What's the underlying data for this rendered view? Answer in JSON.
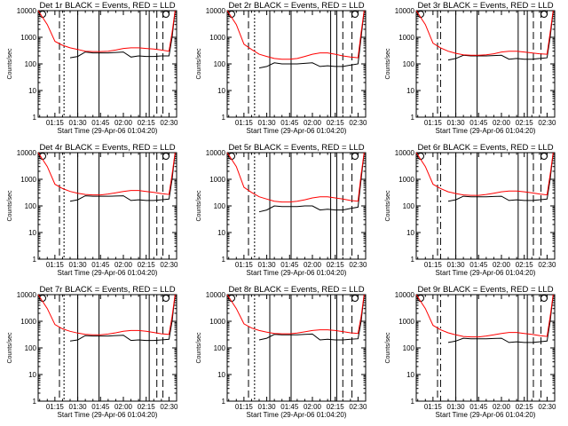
{
  "figure": {
    "type": "line",
    "y_scale": "log",
    "grid": false,
    "ylim": [
      1,
      10000
    ],
    "y_ticks": [
      {
        "value": 1,
        "label": "1"
      },
      {
        "value": 10,
        "label": "10"
      },
      {
        "value": 100,
        "label": "100"
      },
      {
        "value": 1000,
        "label": "1000"
      },
      {
        "value": 10000,
        "label": "10000"
      }
    ],
    "x_ticks": [
      "01:15",
      "01:30",
      "01:45",
      "02:00",
      "02:15",
      "02:30"
    ],
    "xlabel": "Start Time (29-Apr-06 01:04:20)",
    "ylabel": "Counts/sec",
    "colors": {
      "events": "#000000",
      "lld": "#ff0000"
    }
  },
  "chart_data": [
    {
      "type": "line",
      "title": "Det 1r BLACK = Events, RED = LLD",
      "xlabel": "Start Time (29-Apr-06 01:04:20)",
      "ylabel": "Counts/sec",
      "ylim": [
        1,
        10000
      ],
      "x": [
        "01:04",
        "01:10",
        "01:15",
        "01:20",
        "01:25",
        "01:30",
        "01:35",
        "01:40",
        "01:45",
        "01:50",
        "01:55",
        "02:00",
        "02:05",
        "02:10",
        "02:15",
        "02:20",
        "02:25",
        "02:30",
        "02:32",
        "02:34"
      ],
      "series": [
        {
          "name": "Events",
          "values": [
            null,
            null,
            null,
            null,
            170,
            190,
            280,
            260,
            260,
            260,
            270,
            280,
            180,
            200,
            190,
            190,
            200,
            200,
            1000,
            10000
          ]
        },
        {
          "name": "LLD",
          "values": [
            10000,
            3000,
            700,
            500,
            400,
            350,
            300,
            290,
            290,
            300,
            330,
            380,
            400,
            400,
            380,
            360,
            330,
            300,
            1500,
            10000
          ]
        }
      ]
    },
    {
      "type": "line",
      "title": "Det 2r BLACK = Events, RED = LLD",
      "xlabel": "Start Time (29-Apr-06 01:04:20)",
      "ylabel": "Counts/sec",
      "ylim": [
        1,
        10000
      ],
      "x": [
        "01:04",
        "01:10",
        "01:15",
        "01:20",
        "01:25",
        "01:30",
        "01:35",
        "01:40",
        "01:45",
        "01:50",
        "01:55",
        "02:00",
        "02:05",
        "02:10",
        "02:15",
        "02:20",
        "02:25",
        "02:30",
        "02:32",
        "02:34"
      ],
      "series": [
        {
          "name": "Events",
          "values": [
            null,
            null,
            null,
            null,
            70,
            80,
            110,
            100,
            100,
            100,
            105,
            110,
            80,
            85,
            80,
            80,
            90,
            100,
            1000,
            10000
          ]
        },
        {
          "name": "LLD",
          "values": [
            10000,
            3000,
            550,
            350,
            230,
            190,
            160,
            150,
            150,
            160,
            190,
            230,
            260,
            260,
            230,
            200,
            180,
            170,
            1500,
            10000
          ]
        }
      ]
    },
    {
      "type": "line",
      "title": "Det 3r BLACK = Events, RED = LLD",
      "xlabel": "Start Time (29-Apr-06 01:04:20)",
      "ylabel": "Counts/sec",
      "ylim": [
        1,
        10000
      ],
      "x": [
        "01:04",
        "01:10",
        "01:15",
        "01:20",
        "01:25",
        "01:30",
        "01:35",
        "01:40",
        "01:45",
        "01:50",
        "01:55",
        "02:00",
        "02:05",
        "02:10",
        "02:15",
        "02:20",
        "02:25",
        "02:30",
        "02:32",
        "02:34"
      ],
      "series": [
        {
          "name": "Events",
          "values": [
            null,
            null,
            null,
            null,
            140,
            160,
            210,
            200,
            200,
            200,
            205,
            210,
            150,
            160,
            150,
            150,
            160,
            170,
            1000,
            10000
          ]
        },
        {
          "name": "LLD",
          "values": [
            10000,
            3000,
            600,
            400,
            300,
            250,
            220,
            210,
            210,
            220,
            240,
            280,
            300,
            300,
            280,
            260,
            240,
            230,
            1500,
            10000
          ]
        }
      ]
    },
    {
      "type": "line",
      "title": "Det 4r BLACK = Events, RED = LLD",
      "xlabel": "Start Time (29-Apr-06 01:04:20)",
      "ylabel": "Counts/sec",
      "ylim": [
        1,
        10000
      ],
      "x": [
        "01:04",
        "01:10",
        "01:15",
        "01:20",
        "01:25",
        "01:30",
        "01:35",
        "01:40",
        "01:45",
        "01:50",
        "01:55",
        "02:00",
        "02:05",
        "02:10",
        "02:15",
        "02:20",
        "02:25",
        "02:30",
        "02:32",
        "02:34"
      ],
      "series": [
        {
          "name": "Events",
          "values": [
            null,
            null,
            null,
            null,
            150,
            170,
            240,
            230,
            230,
            230,
            235,
            240,
            160,
            170,
            160,
            160,
            170,
            180,
            1000,
            10000
          ]
        },
        {
          "name": "LLD",
          "values": [
            10000,
            3000,
            650,
            450,
            350,
            300,
            270,
            260,
            260,
            280,
            310,
            350,
            380,
            380,
            350,
            320,
            290,
            270,
            1500,
            10000
          ]
        }
      ]
    },
    {
      "type": "line",
      "title": "Det 5r BLACK = Events, RED = LLD",
      "xlabel": "Start Time (29-Apr-06 01:04:20)",
      "ylabel": "Counts/sec",
      "ylim": [
        1,
        10000
      ],
      "x": [
        "01:04",
        "01:10",
        "01:15",
        "01:20",
        "01:25",
        "01:30",
        "01:35",
        "01:40",
        "01:45",
        "01:50",
        "01:55",
        "02:00",
        "02:05",
        "02:10",
        "02:15",
        "02:20",
        "02:25",
        "02:30",
        "02:32",
        "02:34"
      ],
      "series": [
        {
          "name": "Events",
          "values": [
            null,
            null,
            null,
            null,
            60,
            70,
            100,
            95,
            95,
            95,
            100,
            100,
            70,
            75,
            70,
            70,
            80,
            90,
            1000,
            10000
          ]
        },
        {
          "name": "LLD",
          "values": [
            10000,
            3000,
            500,
            320,
            220,
            180,
            150,
            140,
            140,
            150,
            170,
            200,
            220,
            220,
            200,
            180,
            160,
            150,
            1500,
            10000
          ]
        }
      ]
    },
    {
      "type": "line",
      "title": "Det 6r BLACK = Events, RED = LLD",
      "xlabel": "Start Time (29-Apr-06 01:04:20)",
      "ylabel": "Counts/sec",
      "ylim": [
        1,
        10000
      ],
      "x": [
        "01:04",
        "01:10",
        "01:15",
        "01:20",
        "01:25",
        "01:30",
        "01:35",
        "01:40",
        "01:45",
        "01:50",
        "01:55",
        "02:00",
        "02:05",
        "02:10",
        "02:15",
        "02:20",
        "02:25",
        "02:30",
        "02:32",
        "02:34"
      ],
      "series": [
        {
          "name": "Events",
          "values": [
            null,
            null,
            null,
            null,
            150,
            170,
            230,
            220,
            220,
            220,
            225,
            230,
            160,
            170,
            160,
            160,
            170,
            180,
            1000,
            10000
          ]
        },
        {
          "name": "LLD",
          "values": [
            10000,
            3000,
            650,
            450,
            340,
            290,
            260,
            250,
            250,
            270,
            300,
            340,
            360,
            360,
            340,
            310,
            280,
            260,
            1500,
            10000
          ]
        }
      ]
    },
    {
      "type": "line",
      "title": "Det 7r BLACK = Events, RED = LLD",
      "xlabel": "Start Time (29-Apr-06 01:04:20)",
      "ylabel": "Counts/sec",
      "ylim": [
        1,
        10000
      ],
      "x": [
        "01:04",
        "01:10",
        "01:15",
        "01:20",
        "01:25",
        "01:30",
        "01:35",
        "01:40",
        "01:45",
        "01:50",
        "01:55",
        "02:00",
        "02:05",
        "02:10",
        "02:15",
        "02:20",
        "02:25",
        "02:30",
        "02:32",
        "02:34"
      ],
      "series": [
        {
          "name": "Events",
          "values": [
            null,
            null,
            null,
            null,
            180,
            200,
            290,
            280,
            280,
            280,
            290,
            300,
            190,
            200,
            190,
            190,
            200,
            210,
            1000,
            10000
          ]
        },
        {
          "name": "LLD",
          "values": [
            10000,
            3000,
            750,
            520,
            420,
            360,
            320,
            310,
            310,
            330,
            370,
            420,
            450,
            450,
            420,
            380,
            340,
            320,
            1500,
            10000
          ]
        }
      ]
    },
    {
      "type": "line",
      "title": "Det 8r BLACK = Events, RED = LLD",
      "xlabel": "Start Time (29-Apr-06 01:04:20)",
      "ylabel": "Counts/sec",
      "ylim": [
        1,
        10000
      ],
      "x": [
        "01:04",
        "01:10",
        "01:15",
        "01:20",
        "01:25",
        "01:30",
        "01:35",
        "01:40",
        "01:45",
        "01:50",
        "01:55",
        "02:00",
        "02:05",
        "02:10",
        "02:15",
        "02:20",
        "02:25",
        "02:30",
        "02:32",
        "02:34"
      ],
      "series": [
        {
          "name": "Events",
          "values": [
            null,
            null,
            null,
            null,
            200,
            230,
            320,
            310,
            310,
            310,
            320,
            330,
            200,
            210,
            200,
            200,
            210,
            220,
            1000,
            10000
          ]
        },
        {
          "name": "LLD",
          "values": [
            10000,
            3000,
            800,
            560,
            450,
            390,
            350,
            340,
            340,
            360,
            400,
            450,
            480,
            480,
            450,
            410,
            370,
            350,
            1500,
            10000
          ]
        }
      ]
    },
    {
      "type": "line",
      "title": "Det 9r BLACK = Events, RED = LLD",
      "xlabel": "Start Time (29-Apr-06 01:04:20)",
      "ylabel": "Counts/sec",
      "ylim": [
        1,
        10000
      ],
      "x": [
        "01:04",
        "01:10",
        "01:15",
        "01:20",
        "01:25",
        "01:30",
        "01:35",
        "01:40",
        "01:45",
        "01:50",
        "01:55",
        "02:00",
        "02:05",
        "02:10",
        "02:15",
        "02:20",
        "02:25",
        "02:30",
        "02:32",
        "02:34"
      ],
      "series": [
        {
          "name": "Events",
          "values": [
            null,
            null,
            null,
            null,
            160,
            180,
            230,
            220,
            220,
            220,
            225,
            230,
            160,
            170,
            160,
            160,
            170,
            180,
            1000,
            10000
          ]
        },
        {
          "name": "LLD",
          "values": [
            10000,
            3000,
            700,
            480,
            370,
            310,
            270,
            260,
            260,
            280,
            310,
            350,
            380,
            380,
            350,
            320,
            290,
            270,
            1500,
            10000
          ]
        }
      ]
    }
  ]
}
